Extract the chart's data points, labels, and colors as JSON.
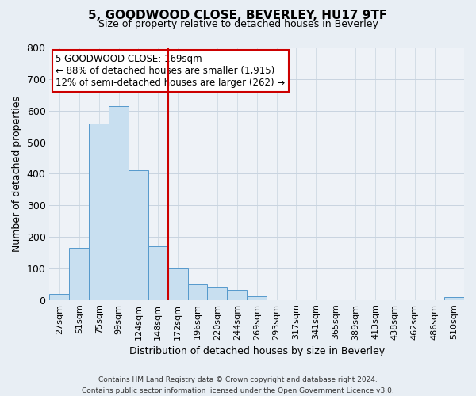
{
  "title": "5, GOODWOOD CLOSE, BEVERLEY, HU17 9TF",
  "subtitle": "Size of property relative to detached houses in Beverley",
  "xlabel": "Distribution of detached houses by size in Beverley",
  "ylabel": "Number of detached properties",
  "bar_labels": [
    "27sqm",
    "51sqm",
    "75sqm",
    "99sqm",
    "124sqm",
    "148sqm",
    "172sqm",
    "196sqm",
    "220sqm",
    "244sqm",
    "269sqm",
    "293sqm",
    "317sqm",
    "341sqm",
    "365sqm",
    "389sqm",
    "413sqm",
    "438sqm",
    "462sqm",
    "486sqm",
    "510sqm"
  ],
  "bar_heights": [
    20,
    165,
    560,
    615,
    410,
    170,
    100,
    50,
    40,
    33,
    12,
    0,
    0,
    0,
    0,
    0,
    0,
    0,
    0,
    0,
    8
  ],
  "bar_color": "#c8dff0",
  "bar_edge_color": "#5599cc",
  "vline_index": 6,
  "vline_color": "#cc0000",
  "annotation_title": "5 GOODWOOD CLOSE: 169sqm",
  "annotation_line1": "← 88% of detached houses are smaller (1,915)",
  "annotation_line2": "12% of semi-detached houses are larger (262) →",
  "annotation_box_facecolor": "#ffffff",
  "annotation_box_edgecolor": "#cc0000",
  "ylim": [
    0,
    800
  ],
  "yticks": [
    0,
    100,
    200,
    300,
    400,
    500,
    600,
    700,
    800
  ],
  "footer_line1": "Contains HM Land Registry data © Crown copyright and database right 2024.",
  "footer_line2": "Contains public sector information licensed under the Open Government Licence v3.0.",
  "background_color": "#e8eef4",
  "plot_background": "#eef2f7",
  "grid_color": "#c8d4e0"
}
